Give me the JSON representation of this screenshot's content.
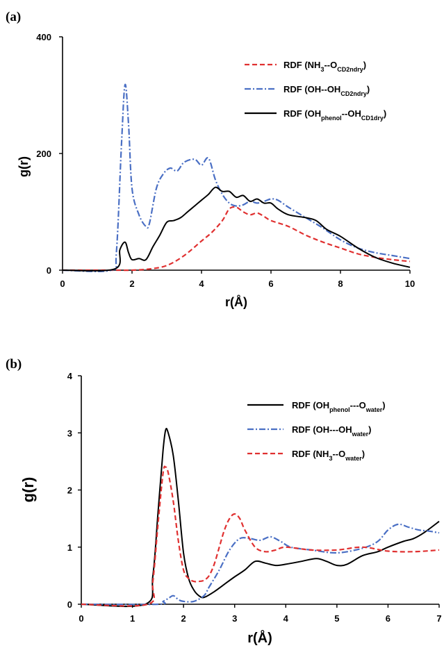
{
  "chart_data": [
    {
      "type": "line",
      "panel_label": "(a)",
      "xlabel": "r(Å)",
      "ylabel": "g(r)",
      "xlim": [
        0,
        10
      ],
      "ylim": [
        0,
        400
      ],
      "xticks": [
        0,
        2,
        4,
        6,
        8,
        10
      ],
      "yticks": [
        0,
        200,
        400
      ],
      "grid": false,
      "legend_position": "top-right",
      "series": [
        {
          "name": "RDF (NH3--OCD2ndry)",
          "legend": {
            "pre": "RDF (NH",
            "sub1": "3",
            "mid": "--O",
            "sub2": "CD2ndry",
            "post": ")"
          },
          "color": "#e03030",
          "style": "dashed",
          "x": [
            0,
            1.5,
            2.0,
            2.5,
            3.0,
            3.5,
            4.0,
            4.3,
            4.6,
            4.8,
            5.0,
            5.2,
            5.4,
            5.6,
            5.8,
            6.0,
            6.5,
            7.0,
            7.5,
            8.0,
            8.5,
            9.0,
            9.5,
            10.0
          ],
          "y": [
            0,
            0,
            0,
            2,
            8,
            25,
            50,
            65,
            85,
            105,
            108,
            100,
            95,
            98,
            92,
            85,
            75,
            60,
            48,
            38,
            28,
            22,
            18,
            15
          ]
        },
        {
          "name": "RDF (OH--OHCD2ndry)",
          "legend": {
            "pre": "RDF (OH--OH",
            "sub1": "CD2ndry",
            "mid": "",
            "sub2": "",
            "post": ")"
          },
          "color": "#4a6fc4",
          "style": "dashdot",
          "x": [
            0,
            1.4,
            1.55,
            1.7,
            1.8,
            1.9,
            2.0,
            2.2,
            2.4,
            2.5,
            2.7,
            2.9,
            3.1,
            3.3,
            3.5,
            3.8,
            4.0,
            4.2,
            4.4,
            4.6,
            4.8,
            5.0,
            5.2,
            5.4,
            5.6,
            5.8,
            6.0,
            6.2,
            6.5,
            7.0,
            7.5,
            8.0,
            8.5,
            9.0,
            9.5,
            10.0
          ],
          "y": [
            0,
            0,
            30,
            220,
            318,
            250,
            140,
            95,
            75,
            80,
            140,
            165,
            175,
            170,
            185,
            190,
            180,
            192,
            155,
            130,
            115,
            110,
            112,
            118,
            115,
            118,
            122,
            120,
            108,
            90,
            72,
            52,
            38,
            30,
            25,
            20
          ]
        },
        {
          "name": "RDF (OHphenol--OHCD1dry)",
          "legend": {
            "pre": "RDF (OH",
            "sub1": "phenol",
            "mid": "--OH",
            "sub2": "CD1dry",
            "post": ")"
          },
          "color": "#000000",
          "style": "solid",
          "x": [
            0,
            1.5,
            1.65,
            1.8,
            1.9,
            2.0,
            2.2,
            2.4,
            2.6,
            2.8,
            3.0,
            3.2,
            3.4,
            3.6,
            3.8,
            4.0,
            4.2,
            4.4,
            4.6,
            4.8,
            5.0,
            5.2,
            5.4,
            5.6,
            5.8,
            6.0,
            6.2,
            6.5,
            7.0,
            7.3,
            7.6,
            8.0,
            8.5,
            9.0,
            9.5,
            10.0
          ],
          "y": [
            0,
            2,
            35,
            48,
            30,
            18,
            20,
            18,
            40,
            60,
            82,
            85,
            90,
            100,
            110,
            120,
            130,
            142,
            135,
            135,
            125,
            128,
            118,
            122,
            115,
            115,
            105,
            95,
            90,
            85,
            70,
            58,
            38,
            22,
            12,
            5
          ]
        }
      ]
    },
    {
      "type": "line",
      "panel_label": "(b)",
      "xlabel": "r(Å)",
      "ylabel": "g(r)",
      "xlim": [
        0,
        7
      ],
      "ylim": [
        0,
        4
      ],
      "xticks": [
        0,
        1,
        2,
        3,
        4,
        5,
        6,
        7
      ],
      "yticks": [
        0,
        1,
        2,
        3,
        4
      ],
      "grid": false,
      "legend_position": "top-right",
      "series": [
        {
          "name": "RDF (OHphenol---Owater)",
          "legend": {
            "pre": "RDF (OH",
            "sub1": "phenol",
            "mid": "---O",
            "sub2": "water",
            "post": ")"
          },
          "color": "#000000",
          "style": "solid",
          "x": [
            0,
            1.25,
            1.4,
            1.5,
            1.6,
            1.65,
            1.7,
            1.8,
            1.9,
            2.0,
            2.1,
            2.2,
            2.3,
            2.4,
            2.6,
            2.8,
            3.0,
            3.2,
            3.4,
            3.6,
            3.8,
            4.0,
            4.3,
            4.6,
            4.8,
            5.0,
            5.2,
            5.5,
            5.8,
            6.0,
            6.3,
            6.5,
            6.7,
            7.0
          ],
          "y": [
            0,
            0,
            0.5,
            1.6,
            2.7,
            3.05,
            3.0,
            2.6,
            1.8,
            0.9,
            0.45,
            0.25,
            0.15,
            0.12,
            0.22,
            0.35,
            0.48,
            0.6,
            0.75,
            0.72,
            0.68,
            0.7,
            0.75,
            0.8,
            0.75,
            0.68,
            0.7,
            0.85,
            0.92,
            1.0,
            1.1,
            1.15,
            1.25,
            1.45
          ]
        },
        {
          "name": "RDF (OH---OHwater)",
          "legend": {
            "pre": "RDF (OH---OH",
            "sub1": "water",
            "mid": "",
            "sub2": "",
            "post": ")"
          },
          "color": "#4a6fc4",
          "style": "dashdot",
          "x": [
            0,
            1.5,
            1.6,
            1.7,
            1.8,
            1.9,
            2.0,
            2.2,
            2.4,
            2.5,
            2.7,
            2.9,
            3.1,
            3.3,
            3.5,
            3.7,
            3.9,
            4.1,
            4.5,
            5.0,
            5.5,
            5.8,
            6.0,
            6.2,
            6.4,
            6.6,
            6.8,
            7.0
          ],
          "y": [
            0,
            0,
            0.05,
            0.1,
            0.15,
            0.08,
            0.05,
            0.05,
            0.15,
            0.3,
            0.6,
            0.95,
            1.15,
            1.15,
            1.12,
            1.18,
            1.1,
            1.0,
            0.95,
            0.9,
            0.98,
            1.1,
            1.3,
            1.4,
            1.35,
            1.3,
            1.28,
            1.25
          ]
        },
        {
          "name": "RDF (NH3--Owater)",
          "legend": {
            "pre": "RDF (NH",
            "sub1": "3",
            "mid": "--O",
            "sub2": "water",
            "post": ")"
          },
          "color": "#e03030",
          "style": "dashed",
          "x": [
            0,
            1.3,
            1.4,
            1.5,
            1.6,
            1.65,
            1.7,
            1.8,
            1.9,
            2.0,
            2.1,
            2.2,
            2.3,
            2.4,
            2.5,
            2.6,
            2.7,
            2.8,
            2.9,
            3.0,
            3.1,
            3.2,
            3.4,
            3.6,
            3.8,
            4.0,
            4.5,
            5.0,
            5.5,
            6.0,
            6.5,
            7.0
          ],
          "y": [
            0,
            0,
            0.4,
            1.4,
            2.3,
            2.4,
            2.3,
            1.8,
            1.1,
            0.6,
            0.45,
            0.4,
            0.4,
            0.42,
            0.5,
            0.7,
            1.0,
            1.3,
            1.5,
            1.58,
            1.5,
            1.3,
            1.0,
            0.92,
            0.95,
            1.0,
            0.95,
            0.95,
            1.0,
            0.93,
            0.92,
            0.95
          ]
        }
      ]
    }
  ]
}
